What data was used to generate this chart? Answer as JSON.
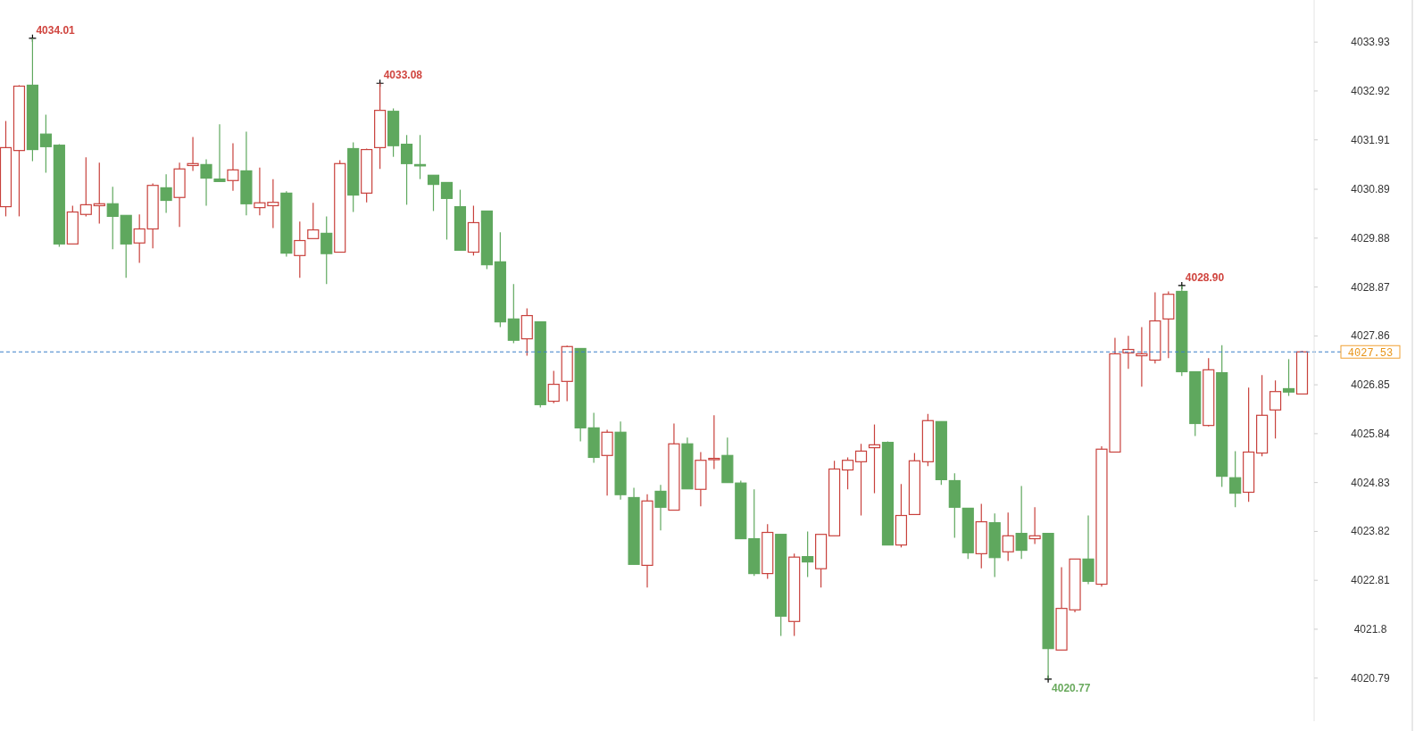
{
  "chart_data": {
    "type": "candlestick",
    "categories": [
      null,
      null,
      null,
      null,
      null,
      null,
      null,
      null,
      null,
      null,
      null,
      null,
      null,
      null,
      null,
      null,
      null,
      null,
      null,
      null,
      null,
      null,
      null,
      null,
      null,
      null,
      null,
      null,
      null,
      null,
      null,
      null,
      null,
      null,
      null,
      null,
      null,
      null,
      null,
      null,
      null,
      null,
      null,
      null,
      null,
      null,
      null,
      null,
      null,
      null,
      null,
      null,
      null,
      null,
      null,
      null,
      null,
      null,
      null,
      null,
      null,
      null,
      null,
      null,
      null,
      null,
      null,
      null,
      null,
      null,
      null,
      null,
      null,
      null,
      null,
      null,
      null,
      null,
      null,
      null,
      null,
      null,
      null,
      null,
      null,
      null,
      null,
      null,
      null,
      null,
      null,
      null,
      null,
      null,
      null,
      null,
      null,
      null
    ],
    "ohlc": [
      [
        4030.53,
        4032.3,
        4030.33,
        4031.75
      ],
      [
        4031.69,
        4033.04,
        4030.33,
        4033.02
      ],
      [
        4033.04,
        4034.01,
        4031.47,
        4031.71
      ],
      [
        4032.03,
        4032.43,
        4031.23,
        4031.77
      ],
      [
        4031.8,
        4031.82,
        4029.7,
        4029.76
      ],
      [
        4029.76,
        4030.55,
        4029.76,
        4030.42
      ],
      [
        4030.37,
        4031.55,
        4030.33,
        4030.57
      ],
      [
        4030.55,
        4031.44,
        4030.18,
        4030.59
      ],
      [
        4030.59,
        4030.94,
        4029.65,
        4030.33
      ],
      [
        4030.35,
        4030.35,
        4029.06,
        4029.76
      ],
      [
        4029.78,
        4030.37,
        4029.37,
        4030.07
      ],
      [
        4030.07,
        4031.01,
        4029.67,
        4030.97
      ],
      [
        4030.92,
        4031.2,
        4030.4,
        4030.66
      ],
      [
        4030.72,
        4031.44,
        4030.11,
        4031.31
      ],
      [
        4031.38,
        4031.97,
        4031.27,
        4031.42
      ],
      [
        4031.4,
        4031.51,
        4030.55,
        4031.12
      ],
      [
        4031.1,
        4032.23,
        4031.05,
        4031.05
      ],
      [
        4031.07,
        4031.84,
        4030.86,
        4031.29
      ],
      [
        4031.27,
        4032.08,
        4030.35,
        4030.59
      ],
      [
        4030.51,
        4031.34,
        4030.35,
        4030.61
      ],
      [
        4030.55,
        4031.1,
        4030.09,
        4030.62
      ],
      [
        4030.81,
        4030.85,
        4029.5,
        4029.57
      ],
      [
        4029.52,
        4030.22,
        4029.06,
        4029.83
      ],
      [
        4029.87,
        4030.61,
        4029.87,
        4030.05
      ],
      [
        4029.98,
        4030.33,
        4028.93,
        4029.56
      ],
      [
        4029.59,
        4031.49,
        4029.59,
        4031.42
      ],
      [
        4031.73,
        4031.86,
        4030.42,
        4030.77
      ],
      [
        4030.81,
        4031.73,
        4030.62,
        4031.71
      ],
      [
        4031.75,
        4033.08,
        4031.31,
        4032.52
      ],
      [
        4032.5,
        4032.56,
        4031.56,
        4031.79
      ],
      [
        4031.82,
        4032.01,
        4030.57,
        4031.42
      ],
      [
        4031.4,
        4032.01,
        4031.1,
        4031.39
      ],
      [
        4031.18,
        4031.18,
        4030.44,
        4030.99
      ],
      [
        4031.03,
        4031.03,
        4029.85,
        4030.7
      ],
      [
        4030.53,
        4030.88,
        4029.63,
        4029.63
      ],
      [
        4029.59,
        4030.55,
        4029.52,
        4030.2
      ],
      [
        4030.44,
        4030.44,
        4029.24,
        4029.33
      ],
      [
        4029.39,
        4030,
        4028.04,
        4028.15
      ],
      [
        4028.21,
        4028.93,
        4027.71,
        4027.77
      ],
      [
        4027.8,
        4028.43,
        4027.45,
        4028.28
      ],
      [
        4028.15,
        4028.15,
        4026.38,
        4026.44
      ],
      [
        4026.51,
        4027.14,
        4026.47,
        4026.86
      ],
      [
        4026.92,
        4027.66,
        4026.51,
        4027.64
      ],
      [
        4027.6,
        4027.6,
        4025.68,
        4025.96
      ],
      [
        4025.96,
        4026.27,
        4025.24,
        4025.35
      ],
      [
        4025.39,
        4025.92,
        4024.56,
        4025.87
      ],
      [
        4025.87,
        4026.09,
        4024.48,
        4024.58
      ],
      [
        4024.52,
        4024.72,
        4023.14,
        4023.14
      ],
      [
        4023.12,
        4024.59,
        4022.66,
        4024.45
      ],
      [
        4024.65,
        4024.78,
        4023.84,
        4024.32
      ],
      [
        4024.26,
        4026.05,
        4024.26,
        4025.63
      ],
      [
        4025.63,
        4025.76,
        4024.7,
        4024.7
      ],
      [
        4024.69,
        4025.46,
        4024.34,
        4025.29
      ],
      [
        4025.31,
        4026.22,
        4025.11,
        4025.33
      ],
      [
        4025.39,
        4025.76,
        4024.83,
        4024.83
      ],
      [
        4024.82,
        4024.87,
        4023.67,
        4023.67
      ],
      [
        4023.67,
        4024.69,
        4022.9,
        4022.95
      ],
      [
        4022.95,
        4023.97,
        4022.84,
        4023.8
      ],
      [
        4023.76,
        4023.76,
        4021.66,
        4022.07
      ],
      [
        4021.96,
        4023.36,
        4021.66,
        4023.29
      ],
      [
        4023.3,
        4023.82,
        4022.88,
        4023.19
      ],
      [
        4023.05,
        4023.76,
        4022.66,
        4023.76
      ],
      [
        4023.73,
        4025.28,
        4023.73,
        4025.11
      ],
      [
        4025.09,
        4025.35,
        4024.69,
        4025.29
      ],
      [
        4025.26,
        4025.63,
        4024.15,
        4025.48
      ],
      [
        4025.55,
        4026.03,
        4024.61,
        4025.61
      ],
      [
        4025.66,
        4025.68,
        4023.54,
        4023.54
      ],
      [
        4023.54,
        4024.8,
        4023.49,
        4024.15
      ],
      [
        4024.17,
        4025.44,
        4024.17,
        4025.28
      ],
      [
        4025.26,
        4026.25,
        4025.17,
        4026.11
      ],
      [
        4026.09,
        4026.09,
        4024.78,
        4024.89
      ],
      [
        4024.87,
        4025.02,
        4023.69,
        4024.32
      ],
      [
        4024.3,
        4024.3,
        4023.25,
        4023.38
      ],
      [
        4023.36,
        4024.39,
        4023.06,
        4024.02
      ],
      [
        4024,
        4024.19,
        4022.88,
        4023.28
      ],
      [
        4023.4,
        4024.21,
        4023.21,
        4023.73
      ],
      [
        4023.78,
        4024.76,
        4023.25,
        4023.43
      ],
      [
        4023.67,
        4024.32,
        4023.56,
        4023.73
      ],
      [
        4023.78,
        4023.78,
        4020.77,
        4021.4
      ],
      [
        4021.37,
        4023.08,
        4021.37,
        4022.23
      ],
      [
        4022.2,
        4023.25,
        4022.15,
        4023.25
      ],
      [
        4023.25,
        4024.15,
        4022.73,
        4022.79
      ],
      [
        4022.73,
        4025.58,
        4022.68,
        4025.52
      ],
      [
        4025.46,
        4027.82,
        4025.46,
        4027.49
      ],
      [
        4027.51,
        4027.86,
        4027.18,
        4027.58
      ],
      [
        4027.45,
        4028.04,
        4026.81,
        4027.49
      ],
      [
        4027.36,
        4028.76,
        4027.29,
        4028.17
      ],
      [
        4028.21,
        4028.78,
        4027.4,
        4028.72
      ],
      [
        4028.78,
        4028.9,
        4027.03,
        4027.12
      ],
      [
        4027.12,
        4027.12,
        4025.79,
        4026.05
      ],
      [
        4026.01,
        4027.4,
        4025.99,
        4027.16
      ],
      [
        4027.1,
        4027.67,
        4024.74,
        4024.96
      ],
      [
        4024.93,
        4025.48,
        4024.32,
        4024.61
      ],
      [
        4024.63,
        4026.79,
        4024.43,
        4025.46
      ],
      [
        4025.44,
        4027.05,
        4025.37,
        4026.22
      ],
      [
        4026.33,
        4026.94,
        4025.74,
        4026.71
      ],
      [
        4026.77,
        4027.38,
        4026.62,
        4026.7
      ],
      [
        4026.66,
        4027.55,
        4026.66,
        4027.53
      ]
    ],
    "ylim": [
      4019.9,
      4034.8
    ],
    "yticks": [
      4033.93,
      4032.92,
      4031.91,
      4030.89,
      4029.88,
      4028.87,
      4027.86,
      4026.85,
      4025.84,
      4024.83,
      4023.82,
      4022.81,
      4021.8,
      4020.79
    ],
    "ref_lines": [
      {
        "axis": "y",
        "value": 4027.53,
        "label": "4027.53",
        "color": "#3a7fc8",
        "line_style": "dashed"
      }
    ],
    "annotations": [
      "4034.01",
      "4033.08",
      "4028.90",
      "4020.77"
    ]
  }
}
